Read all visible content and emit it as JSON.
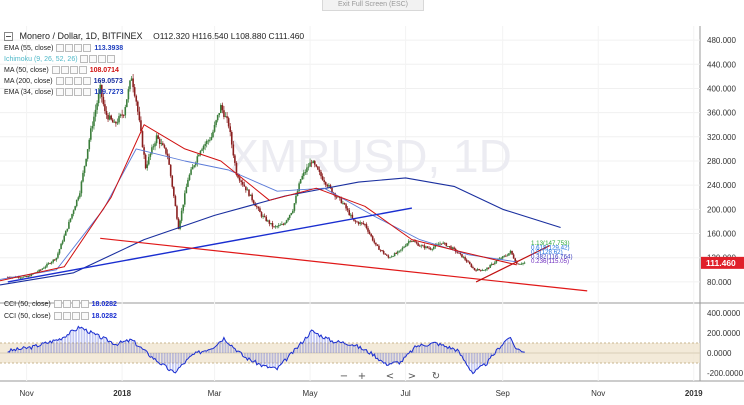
{
  "window": {
    "exit_label": "Exit Full Screen (ESC)"
  },
  "header": {
    "title": "Monero / Dollar, 1D, BITFINEX",
    "ohlc": "O112.320  H116.540  L108.880  C111.460"
  },
  "indicators": [
    {
      "name": "EMA (55, close)",
      "value": "113.3938",
      "color": "#1f3fbf"
    },
    {
      "name": "Ichimoku (9, 26, 52, 26)",
      "value": "",
      "color": "#3fbfbf"
    },
    {
      "name": "MA (50, close)",
      "value": "108.0714",
      "color": "#d01010"
    },
    {
      "name": "MA (200, close)",
      "value": "169.0573",
      "color": "#1a2f9f"
    },
    {
      "name": "EMA (34, close)",
      "value": "109.7273",
      "color": "#1f3fbf"
    }
  ],
  "cci_legend": [
    {
      "name": "CCI (50, close)",
      "value": "18.0282"
    },
    {
      "name": "CCI (50, close)",
      "value": "18.0282"
    }
  ],
  "watermark": "XMRUSD, 1D",
  "price_axis": {
    "ticks": [
      "480.000",
      "440.000",
      "400.000",
      "360.000",
      "320.000",
      "280.000",
      "240.000",
      "200.000",
      "160.000",
      "120.000",
      "80.000"
    ],
    "current_price": "111.460",
    "current_price_color": "#e0202a"
  },
  "cci_axis": {
    "ticks": [
      "400.0000",
      "200.0000",
      "0.0000",
      "-200.0000"
    ]
  },
  "time_axis": {
    "ticks": [
      "Nov",
      "2018",
      "Mar",
      "May",
      "Jul",
      "Sep",
      "Nov",
      "2019"
    ]
  },
  "fib_labels": [
    "1.13(147.753)",
    "0.618(129.42)",
    "0.5(128.62)",
    "0.382(116.764)",
    "0.236(115.05)"
  ],
  "nav_controls": {
    "zoom_out": "−",
    "zoom_in": "+",
    "scroll_left": "<",
    "scroll_right": ">",
    "reset": "↻"
  },
  "chart_data": {
    "type": "candlestick",
    "title": "Monero / Dollar, 1D, BITFINEX",
    "x_range": [
      "2017-10-15",
      "2019-01-05"
    ],
    "ylim": [
      50,
      500
    ],
    "cci_ylim": [
      -250,
      450
    ],
    "price_series": [
      [
        "2017-10-20",
        88
      ],
      [
        "2017-11-01",
        88
      ],
      [
        "2017-11-10",
        100
      ],
      [
        "2017-11-20",
        120
      ],
      [
        "2017-11-27",
        170
      ],
      [
        "2017-12-05",
        230
      ],
      [
        "2017-12-12",
        330
      ],
      [
        "2017-12-18",
        400
      ],
      [
        "2017-12-21",
        360
      ],
      [
        "2017-12-27",
        340
      ],
      [
        "2018-01-02",
        360
      ],
      [
        "2018-01-07",
        420
      ],
      [
        "2018-01-10",
        380
      ],
      [
        "2018-01-16",
        270
      ],
      [
        "2018-01-23",
        320
      ],
      [
        "2018-01-30",
        290
      ],
      [
        "2018-02-06",
        170
      ],
      [
        "2018-02-12",
        250
      ],
      [
        "2018-02-20",
        300
      ],
      [
        "2018-02-27",
        320
      ],
      [
        "2018-03-05",
        370
      ],
      [
        "2018-03-10",
        340
      ],
      [
        "2018-03-15",
        260
      ],
      [
        "2018-03-22",
        230
      ],
      [
        "2018-03-31",
        190
      ],
      [
        "2018-04-08",
        170
      ],
      [
        "2018-04-14",
        175
      ],
      [
        "2018-04-20",
        200
      ],
      [
        "2018-04-25",
        250
      ],
      [
        "2018-05-02",
        280
      ],
      [
        "2018-05-08",
        255
      ],
      [
        "2018-05-15",
        230
      ],
      [
        "2018-05-22",
        210
      ],
      [
        "2018-05-29",
        180
      ],
      [
        "2018-06-05",
        175
      ],
      [
        "2018-06-12",
        140
      ],
      [
        "2018-06-20",
        120
      ],
      [
        "2018-06-27",
        130
      ],
      [
        "2018-07-04",
        150
      ],
      [
        "2018-07-10",
        140
      ],
      [
        "2018-07-17",
        135
      ],
      [
        "2018-07-24",
        145
      ],
      [
        "2018-07-31",
        135
      ],
      [
        "2018-08-07",
        120
      ],
      [
        "2018-08-14",
        100
      ],
      [
        "2018-08-21",
        100
      ],
      [
        "2018-08-28",
        115
      ],
      [
        "2018-09-04",
        125
      ],
      [
        "2018-09-06",
        130
      ],
      [
        "2018-09-10",
        110
      ],
      [
        "2018-09-15",
        111.46
      ]
    ],
    "ma200": [
      [
        "2017-10-15",
        75
      ],
      [
        "2017-12-01",
        95
      ],
      [
        "2018-01-15",
        150
      ],
      [
        "2018-03-01",
        190
      ],
      [
        "2018-04-15",
        222
      ],
      [
        "2018-06-01",
        245
      ],
      [
        "2018-07-01",
        252
      ],
      [
        "2018-08-01",
        238
      ],
      [
        "2018-09-01",
        200
      ],
      [
        "2018-10-08",
        170
      ]
    ],
    "ema55": [
      [
        "2017-10-15",
        84
      ],
      [
        "2017-11-20",
        100
      ],
      [
        "2017-12-20",
        200
      ],
      [
        "2018-01-10",
        300
      ],
      [
        "2018-02-10",
        280
      ],
      [
        "2018-03-10",
        265
      ],
      [
        "2018-04-10",
        230
      ],
      [
        "2018-05-10",
        235
      ],
      [
        "2018-06-10",
        190
      ],
      [
        "2018-07-10",
        150
      ],
      [
        "2018-08-10",
        125
      ],
      [
        "2018-09-10",
        113
      ]
    ],
    "ma50": [
      [
        "2017-10-15",
        82
      ],
      [
        "2017-11-25",
        105
      ],
      [
        "2017-12-25",
        220
      ],
      [
        "2018-01-15",
        340
      ],
      [
        "2018-02-10",
        300
      ],
      [
        "2018-03-05",
        280
      ],
      [
        "2018-04-05",
        215
      ],
      [
        "2018-05-05",
        235
      ],
      [
        "2018-06-05",
        205
      ],
      [
        "2018-07-05",
        150
      ],
      [
        "2018-08-05",
        130
      ],
      [
        "2018-09-10",
        108
      ]
    ],
    "blue_trendline": [
      [
        "2017-10-20",
        80
      ],
      [
        "2018-07-05",
        202
      ]
    ],
    "red_trendline": [
      [
        "2017-12-18",
        152
      ],
      [
        "2018-10-25",
        65
      ]
    ],
    "red_support": [
      [
        "2018-08-15",
        80
      ],
      [
        "2018-10-01",
        140
      ]
    ],
    "cci_series": [
      [
        "2017-10-20",
        20
      ],
      [
        "2017-11-05",
        60
      ],
      [
        "2017-11-22",
        140
      ],
      [
        "2017-12-05",
        260
      ],
      [
        "2017-12-15",
        180
      ],
      [
        "2017-12-28",
        90
      ],
      [
        "2018-01-07",
        130
      ],
      [
        "2018-01-20",
        -40
      ],
      [
        "2018-02-03",
        -200
      ],
      [
        "2018-02-15",
        -20
      ],
      [
        "2018-02-28",
        60
      ],
      [
        "2018-03-07",
        150
      ],
      [
        "2018-03-20",
        -40
      ],
      [
        "2018-04-01",
        -130
      ],
      [
        "2018-04-10",
        -160
      ],
      [
        "2018-04-22",
        40
      ],
      [
        "2018-05-02",
        220
      ],
      [
        "2018-05-15",
        120
      ],
      [
        "2018-05-28",
        90
      ],
      [
        "2018-06-10",
        -10
      ],
      [
        "2018-06-18",
        -110
      ],
      [
        "2018-06-28",
        -90
      ],
      [
        "2018-07-08",
        70
      ],
      [
        "2018-07-20",
        100
      ],
      [
        "2018-08-03",
        30
      ],
      [
        "2018-08-13",
        -200
      ],
      [
        "2018-08-22",
        -100
      ],
      [
        "2018-08-30",
        60
      ],
      [
        "2018-09-05",
        160
      ],
      [
        "2018-09-10",
        40
      ],
      [
        "2018-09-15",
        18
      ]
    ]
  }
}
